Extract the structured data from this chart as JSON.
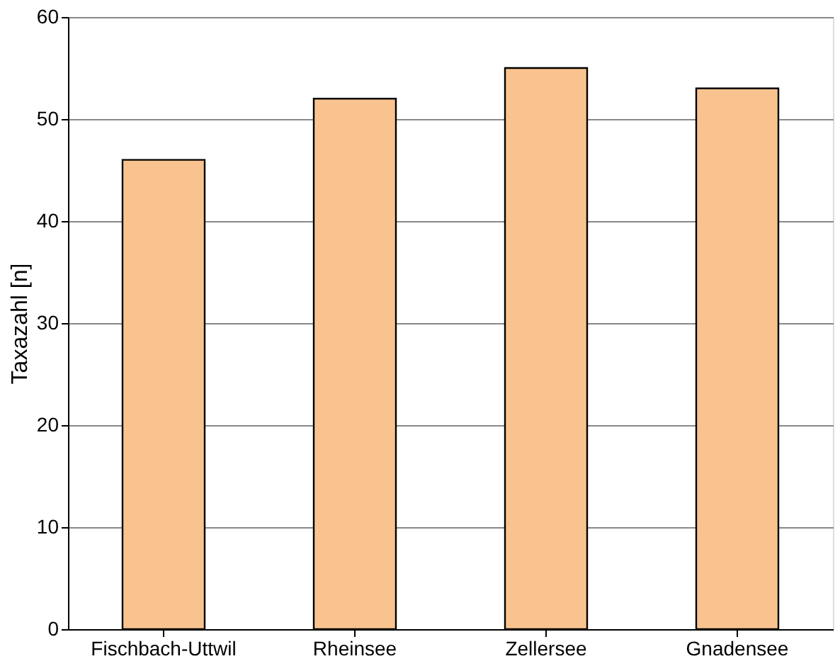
{
  "chart_data": {
    "type": "bar",
    "ylabel": "Taxazahl [n]",
    "categories": [
      "Fischbach-Uttwil",
      "Rheinsee",
      "Zellersee",
      "Gnadensee"
    ],
    "values": [
      46,
      52,
      55,
      53
    ],
    "color": "#f9c38f",
    "ylim": [
      0,
      60
    ],
    "yticks": [
      0,
      10,
      20,
      30,
      40,
      50,
      60
    ],
    "grid": "y"
  }
}
